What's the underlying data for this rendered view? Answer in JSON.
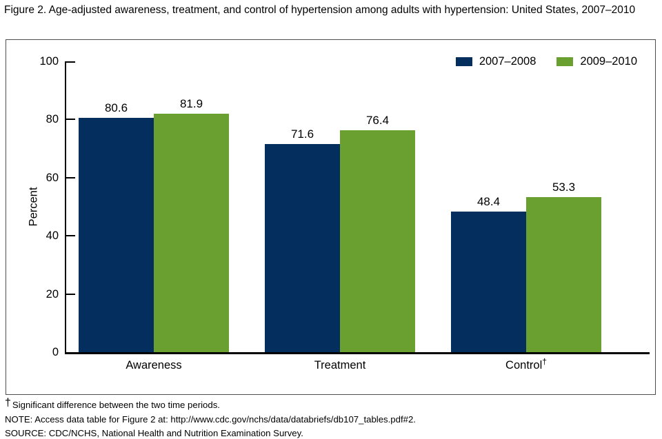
{
  "figure": {
    "title": "Figure 2. Age-adjusted awareness, treatment, and control of hypertension among adults with hypertension: United States, 2007–2010"
  },
  "chart_data": {
    "type": "bar",
    "categories": [
      "Awareness",
      "Treatment",
      "Control†"
    ],
    "series": [
      {
        "name": "2007–2008",
        "color": "#032e5e",
        "values": [
          80.6,
          71.6,
          48.4
        ]
      },
      {
        "name": "2009–2010",
        "color": "#6aa02f",
        "values": [
          81.9,
          76.4,
          53.3
        ]
      }
    ],
    "ylabel": "Percent",
    "ylim": [
      0,
      100
    ],
    "yticks": [
      0,
      20,
      40,
      60,
      80,
      100
    ],
    "grid": false,
    "legend_position": "top-right",
    "value_labels": true,
    "axis_color": "#000000"
  },
  "footnotes": {
    "dagger_symbol": "†",
    "dagger_text": "Significant difference between the two time periods.",
    "note": "NOTE: Access data table for Figure 2 at: http://www.cdc.gov/nchs/data/databriefs/db107_tables.pdf#2.",
    "source": "SOURCE: CDC/NCHS, National Health and Nutrition Examination Survey."
  }
}
